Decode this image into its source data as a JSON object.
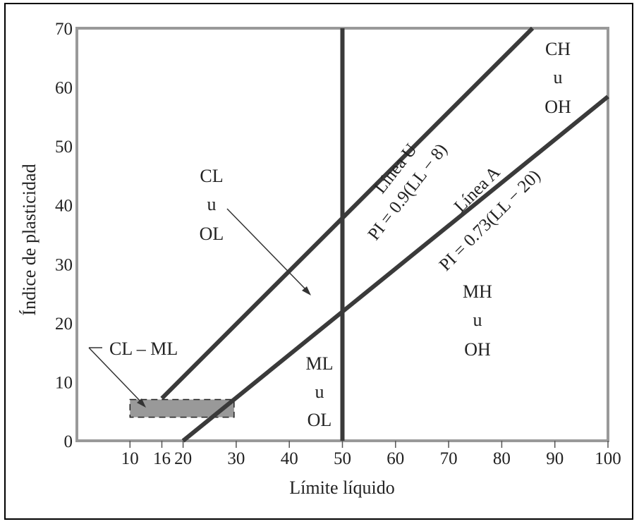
{
  "chart_data": {
    "type": "line",
    "title": "",
    "xlabel": "Límite líquido",
    "ylabel": "Índice de plasticidad",
    "xlim": [
      0,
      100
    ],
    "ylim": [
      0,
      70
    ],
    "x_ticks": [
      10,
      16,
      20,
      30,
      40,
      50,
      60,
      70,
      80,
      90,
      100
    ],
    "y_ticks": [
      0,
      10,
      20,
      30,
      40,
      50,
      60,
      70
    ],
    "grid": false,
    "series": [
      {
        "name": "Línea U",
        "equation": "PI = 0.9(LL − 8)",
        "x": [
          16,
          85.8
        ],
        "y": [
          7.2,
          70
        ]
      },
      {
        "name": "Línea A",
        "equation": "PI = 0.73(LL − 20)",
        "x": [
          20,
          100
        ],
        "y": [
          0,
          58.4
        ]
      }
    ],
    "vertical_line": {
      "x": 50
    },
    "hatched_zone": {
      "label": "CL – ML",
      "x": [
        10,
        29.6
      ],
      "y": [
        4,
        7
      ]
    },
    "zones": [
      {
        "lines": [
          "CL",
          "u",
          "OL"
        ]
      },
      {
        "lines": [
          "CH",
          "u",
          "OH"
        ]
      },
      {
        "lines": [
          "MH",
          "u",
          "OH"
        ]
      },
      {
        "lines": [
          "ML",
          "u",
          "OL"
        ]
      }
    ],
    "colors": {
      "line": "#3a3a3a",
      "frame": "#999999",
      "zone_fill": "#999999"
    }
  }
}
